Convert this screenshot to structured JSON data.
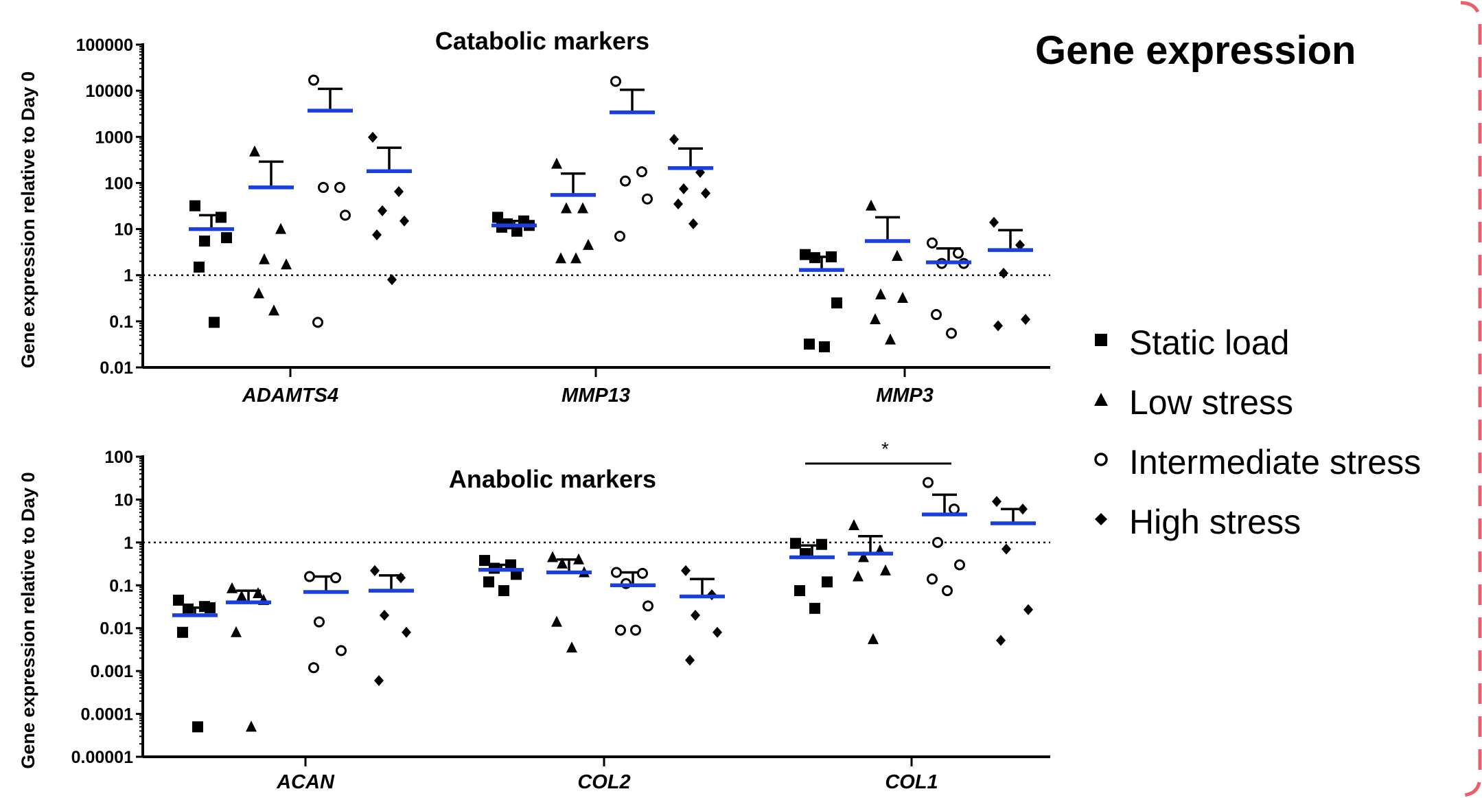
{
  "page_title": "Gene expression",
  "legend": [
    {
      "label": "Static load",
      "marker": "filled-square"
    },
    {
      "label": "Low stress",
      "marker": "filled-triangle"
    },
    {
      "label": "Intermediate stress",
      "marker": "open-circle"
    },
    {
      "label": "High stress",
      "marker": "filled-diamond"
    }
  ],
  "colors": {
    "mean_line": "#1a3fe0",
    "points": "#000000",
    "frame": "#e8606a"
  },
  "chart_data": [
    {
      "type": "scatter",
      "title": "Catabolic markers",
      "ylabel": "Gene expression relative to Day 0",
      "yscale": "log",
      "ylim": [
        0.01,
        100000
      ],
      "yticks": [
        "0.01",
        "0.1",
        "1",
        "10",
        "100",
        "1000",
        "10000",
        "100000"
      ],
      "reference_line": 1,
      "categories": [
        "ADAMTS4",
        "MMP13",
        "MMP3"
      ],
      "series": [
        {
          "name": "Static load",
          "marker": "square",
          "mean": [
            10,
            12,
            1.3
          ],
          "sem_top": [
            20,
            15,
            2.5
          ],
          "points": [
            [
              32,
              18,
              5.5,
              6.5,
              1.5,
              0.095
            ],
            [
              18,
              15,
              13,
              12,
              11,
              9
            ],
            [
              2.8,
              2.5,
              2.4,
              0.25,
              0.032,
              0.028
            ]
          ]
        },
        {
          "name": "Low stress",
          "marker": "triangle",
          "mean": [
            80,
            55,
            5.5
          ],
          "sem_top": [
            290,
            160,
            18
          ],
          "points": [
            [
              480,
              10,
              2.2,
              1.7,
              0.4,
              0.17
            ],
            [
              260,
              28,
              28,
              4.5,
              2.3,
              2.3
            ],
            [
              32,
              2.6,
              0.38,
              0.32,
              0.11,
              0.04
            ]
          ]
        },
        {
          "name": "Intermediate stress",
          "marker": "circle",
          "mean": [
            3700,
            3400,
            1.9
          ],
          "sem_top": [
            11000,
            10500,
            3.8
          ],
          "points": [
            [
              17000,
              80,
              80,
              20,
              0.095
            ],
            [
              16000,
              175,
              110,
              45,
              7
            ],
            [
              5,
              3,
              1.8,
              1.8,
              0.14,
              0.055
            ]
          ]
        },
        {
          "name": "High stress",
          "marker": "diamond",
          "mean": [
            180,
            210,
            3.5
          ],
          "sem_top": [
            580,
            560,
            9.5
          ],
          "points": [
            [
              980,
              65,
              25,
              15,
              7.5,
              0.8
            ],
            [
              880,
              170,
              75,
              60,
              35,
              13
            ],
            [
              14,
              4.5,
              1.1,
              0.11,
              0.08
            ]
          ]
        }
      ]
    },
    {
      "type": "scatter",
      "title": "Anabolic markers",
      "ylabel": "Gene expression relative to Day 0",
      "yscale": "log",
      "ylim": [
        1e-05,
        100
      ],
      "yticks": [
        "0.00001",
        "0.0001",
        "0.001",
        "0.01",
        "0.1",
        "1",
        "10",
        "100"
      ],
      "reference_line": 1,
      "categories": [
        "ACAN",
        "COL2",
        "COL1"
      ],
      "significance": {
        "label": "*",
        "from_category": 2,
        "from_series": 0,
        "to_series": 2
      },
      "series": [
        {
          "name": "Static load",
          "marker": "square",
          "mean": [
            0.02,
            0.23,
            0.45
          ],
          "sem_top": [
            0.03,
            0.3,
            0.85
          ],
          "points": [
            [
              0.045,
              0.032,
              0.028,
              0.03,
              0.008,
              5e-05
            ],
            [
              0.38,
              0.3,
              0.25,
              0.18,
              0.12,
              0.075
            ],
            [
              0.95,
              0.9,
              0.55,
              0.12,
              0.075,
              0.029
            ]
          ]
        },
        {
          "name": "Low stress",
          "marker": "triangle",
          "mean": [
            0.04,
            0.2,
            0.55
          ],
          "sem_top": [
            0.075,
            0.4,
            1.4
          ],
          "points": [
            [
              0.085,
              0.065,
              0.055,
              0.045,
              0.008,
              5e-05
            ],
            [
              0.45,
              0.4,
              0.32,
              0.2,
              0.014,
              0.0035
            ],
            [
              2.5,
              0.65,
              0.45,
              0.22,
              0.16,
              0.0055
            ]
          ]
        },
        {
          "name": "Intermediate stress",
          "marker": "circle",
          "mean": [
            0.07,
            0.1,
            4.5
          ],
          "sem_top": [
            0.16,
            0.2,
            13
          ],
          "points": [
            [
              0.16,
              0.15,
              0.014,
              0.003,
              0.0012
            ],
            [
              0.2,
              0.19,
              0.11,
              0.033,
              0.009,
              0.009
            ],
            [
              25,
              6,
              1,
              0.3,
              0.14,
              0.075
            ]
          ]
        },
        {
          "name": "High stress",
          "marker": "diamond",
          "mean": [
            0.075,
            0.055,
            2.8
          ],
          "sem_top": [
            0.17,
            0.14,
            6
          ],
          "points": [
            [
              0.22,
              0.15,
              0.02,
              0.008,
              0.0006
            ],
            [
              0.22,
              0.06,
              0.02,
              0.008,
              0.0018
            ],
            [
              9,
              6,
              0.7,
              0.027,
              0.0052
            ]
          ]
        }
      ]
    }
  ]
}
